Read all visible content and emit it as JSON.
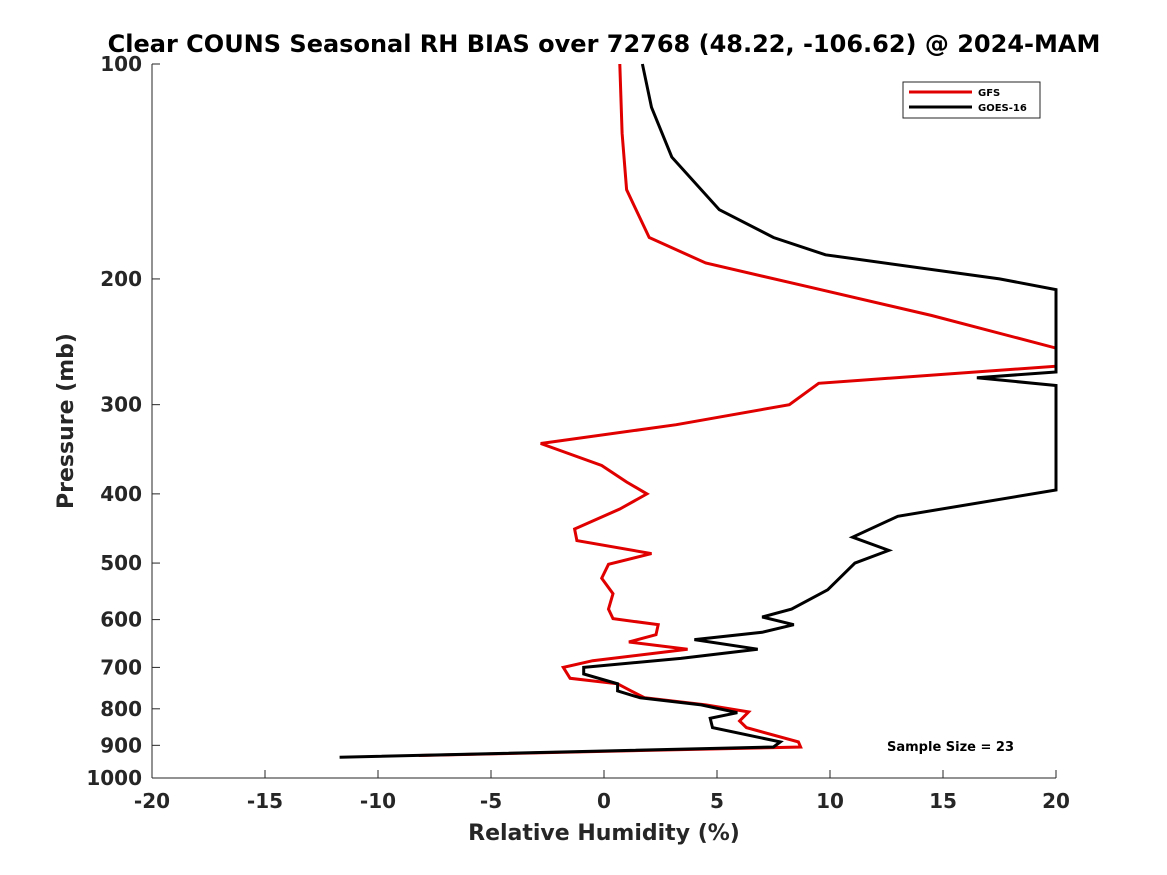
{
  "chart_data": {
    "type": "line",
    "title": "Clear COUNS Seasonal RH BIAS over 72768 (48.22, -106.62) @ 2024-MAM",
    "xlabel": "Relative Humidity (%)",
    "ylabel": "Pressure (mb)",
    "xlim": [
      -20,
      20
    ],
    "ylim": [
      100,
      1000
    ],
    "yscale": "log",
    "y_reversed": true,
    "xticks": [
      -20,
      -15,
      -10,
      -5,
      0,
      5,
      10,
      15,
      20
    ],
    "xtick_labels": [
      "-20",
      "-15",
      "-10",
      "-5",
      "0",
      "5",
      "10",
      "15",
      "20"
    ],
    "yticks": [
      100,
      200,
      300,
      400,
      500,
      600,
      700,
      800,
      900,
      1000
    ],
    "ytick_labels": [
      "100",
      "200",
      "300",
      "400",
      "500",
      "600",
      "700",
      "800",
      "900",
      "1000"
    ],
    "grid": false,
    "legend_position": "top-right",
    "annotation": "Sample Size = 23",
    "series": [
      {
        "name": "GFS",
        "color": "#e00000",
        "points": [
          [
            0.7,
            100
          ],
          [
            0.8,
            125
          ],
          [
            1.0,
            150
          ],
          [
            2.0,
            175
          ],
          [
            4.5,
            190
          ],
          [
            9.0,
            205
          ],
          [
            14.5,
            225
          ],
          [
            20.0,
            250
          ],
          [
            20.0,
            265
          ],
          [
            9.5,
            280
          ],
          [
            8.2,
            300
          ],
          [
            3.2,
            320
          ],
          [
            -2.8,
            340
          ],
          [
            -0.1,
            365
          ],
          [
            1.0,
            385
          ],
          [
            1.9,
            400
          ],
          [
            0.7,
            420
          ],
          [
            -1.3,
            448
          ],
          [
            -1.2,
            465
          ],
          [
            2.1,
            485
          ],
          [
            0.2,
            502
          ],
          [
            -0.1,
            525
          ],
          [
            0.4,
            552
          ],
          [
            0.2,
            580
          ],
          [
            0.4,
            598
          ],
          [
            2.4,
            610
          ],
          [
            2.3,
            630
          ],
          [
            1.1,
            645
          ],
          [
            3.7,
            660
          ],
          [
            -0.5,
            685
          ],
          [
            -1.8,
            700
          ],
          [
            -1.5,
            725
          ],
          [
            0.6,
            738
          ],
          [
            1.2,
            755
          ],
          [
            1.8,
            772
          ],
          [
            4.5,
            790
          ],
          [
            6.4,
            808
          ],
          [
            6.0,
            832
          ],
          [
            6.3,
            850
          ],
          [
            8.6,
            890
          ],
          [
            8.7,
            905
          ],
          [
            -8.2,
            930
          ]
        ]
      },
      {
        "name": "GOES-16",
        "color": "#000000",
        "points": [
          [
            1.7,
            100
          ],
          [
            2.1,
            115
          ],
          [
            3.0,
            135
          ],
          [
            5.1,
            160
          ],
          [
            7.5,
            175
          ],
          [
            9.8,
            185
          ],
          [
            17.5,
            200
          ],
          [
            20.0,
            207
          ],
          [
            20.0,
            270
          ],
          [
            16.5,
            275
          ],
          [
            20.0,
            282
          ],
          [
            20.0,
            395
          ],
          [
            13.0,
            430
          ],
          [
            11.0,
            460
          ],
          [
            12.6,
            480
          ],
          [
            11.1,
            500
          ],
          [
            9.9,
            545
          ],
          [
            8.3,
            580
          ],
          [
            7.0,
            595
          ],
          [
            8.4,
            610
          ],
          [
            7.0,
            625
          ],
          [
            4.0,
            640
          ],
          [
            6.8,
            660
          ],
          [
            3.4,
            680
          ],
          [
            -0.9,
            700
          ],
          [
            -0.9,
            715
          ],
          [
            0.6,
            738
          ],
          [
            0.6,
            755
          ],
          [
            1.6,
            772
          ],
          [
            4.3,
            790
          ],
          [
            5.9,
            810
          ],
          [
            4.7,
            825
          ],
          [
            4.8,
            850
          ],
          [
            7.8,
            890
          ],
          [
            7.5,
            905
          ],
          [
            -11.7,
            935
          ]
        ]
      }
    ]
  }
}
